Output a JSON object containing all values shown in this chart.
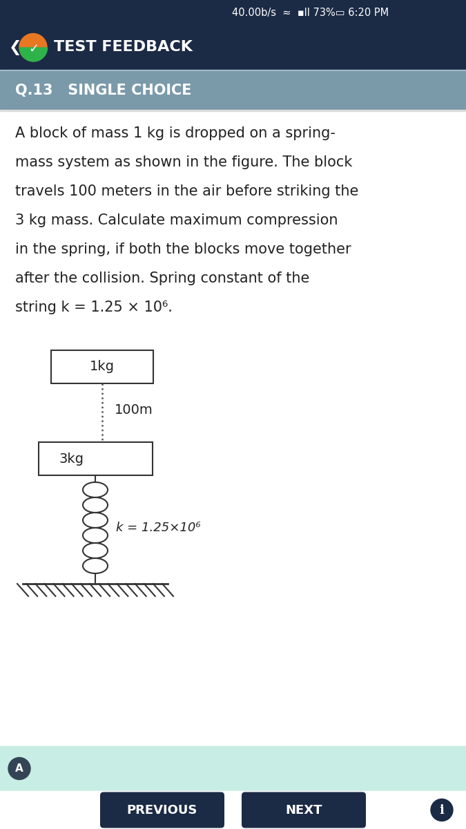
{
  "bg_top": "#1b2a45",
  "bg_band": "#7a9aaa",
  "bg_main": "#ffffff",
  "bg_bottom_area": "#c8ede4",
  "bg_nav": "#ffffff",
  "status_bar_text": "40.00b/s  ≈  ••• 73%□ 6:20 PM",
  "header_label": "TEST FEEDBACK",
  "question_band_text": "Q.13   SINGLE CHOICE",
  "question_text_lines": [
    "A block of mass 1 kg is dropped on a spring-",
    "mass system as shown in the figure. The block",
    "travels 100 meters in the air before striking the",
    "3 kg mass. Calculate maximum compression",
    "in the spring, if both the blocks move together",
    "after the collision. Spring constant of the",
    "string k = 1.25 × 10⁶."
  ],
  "mass1_label": "1kg",
  "distance_label": "100m",
  "mass2_label": "3kg",
  "spring_label": "k = 1.25×10⁶",
  "btn_previous": "PREVIOUS",
  "btn_next": "NEXT",
  "text_color_dark": "#222222",
  "text_color_white": "#ffffff",
  "box_color": "#333333",
  "spring_color": "#333333",
  "dashed_line_color": "#555555",
  "ground_hatch_color": "#333333",
  "btn_color": "#1b2a45",
  "btn_text_color": "#ffffff",
  "logo_orange": "#e87722",
  "logo_green": "#2db34a",
  "info_circle_color": "#1b2a45"
}
